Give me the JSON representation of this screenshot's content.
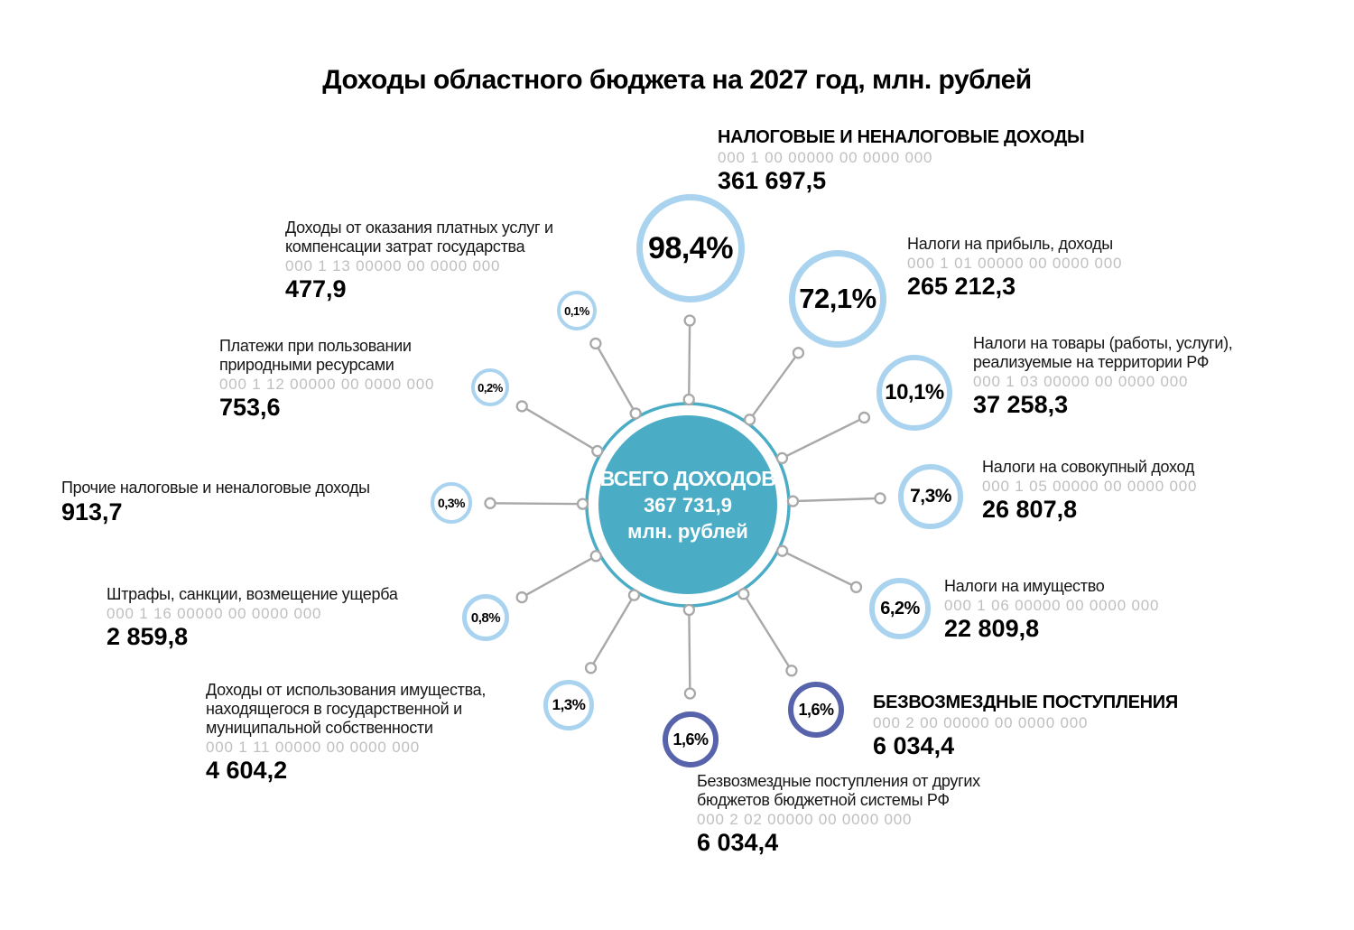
{
  "title": "Доходы областного бюджета на 2027 год, млн. рублей",
  "colors": {
    "teal": "#4bacc6",
    "light_blue": "#a9d3ef",
    "navy": "#5763aa",
    "line_gray": "#a8a8a8",
    "code_gray": "#bfbfbf"
  },
  "center": {
    "title": "ВСЕГО ДОХОДОВ",
    "value": "367 731,9",
    "unit": "млн. рублей"
  },
  "items": [
    {
      "name": "НАЛОГОВЫЕ И НЕНАЛОГОВЫЕ ДОХОДЫ",
      "code": "000 1 00 00000 00 0000 000",
      "value": "361 697,5",
      "percent": "98,4%",
      "emphasis": true,
      "circle_color": "#a9d3ef"
    },
    {
      "name": "Налоги на прибыль, доходы",
      "code": "000 1 01 00000 00 0000 000",
      "value": "265 212,3",
      "percent": "72,1%",
      "circle_color": "#a9d3ef"
    },
    {
      "name": "Налоги на товары (работы, услуги),\nреализуемые на территории РФ",
      "code": "000 1 03 00000 00 0000 000",
      "value": "37 258,3",
      "percent": "10,1%",
      "circle_color": "#a9d3ef"
    },
    {
      "name": "Налоги на совокупный доход",
      "code": "000 1 05 00000 00 0000 000",
      "value": "26 807,8",
      "percent": "7,3%",
      "circle_color": "#a9d3ef"
    },
    {
      "name": "Налоги на имущество",
      "code": "000 1 06 00000 00 0000 000",
      "value": "22 809,8",
      "percent": "6,2%",
      "circle_color": "#a9d3ef"
    },
    {
      "name": "БЕЗВОЗМЕЗДНЫЕ ПОСТУПЛЕНИЯ",
      "code": "000 2 00 00000 00 0000 000",
      "value": "6 034,4",
      "percent": "1,6%",
      "emphasis": true,
      "circle_color": "#5763aa"
    },
    {
      "name": "Безвозмездные поступления от других\nбюджетов бюджетной системы РФ",
      "code": "000 2 02 00000 00 0000 000",
      "value": "6 034,4",
      "percent": "1,6%",
      "circle_color": "#5763aa"
    },
    {
      "name": "Доходы от использования имущества,\nнаходящегося в государственной и\nмуниципальной собственности",
      "code": "000 1 11 00000 00 0000 000",
      "value": "4 604,2",
      "percent": "1,3%",
      "circle_color": "#a9d3ef"
    },
    {
      "name": "Штрафы, санкции, возмещение ущерба",
      "code": "000 1 16 00000 00 0000 000",
      "value": "2 859,8",
      "percent": "0,8%",
      "circle_color": "#a9d3ef"
    },
    {
      "name": "Прочие налоговые и неналоговые доходы",
      "value": "913,7",
      "percent": "0,3%",
      "circle_color": "#a9d3ef"
    },
    {
      "name": "Платежи при пользовании\nприродными ресурсами",
      "code": "000 1 12 00000 00 0000 000",
      "value": "753,6",
      "percent": "0,2%",
      "circle_color": "#a9d3ef"
    },
    {
      "name": "Доходы от оказания платных услуг и\nкомпенсации затрат государства",
      "code": "000 1 13 00000 00 0000 000",
      "value": "477,9",
      "percent": "0,1%",
      "circle_color": "#a9d3ef"
    }
  ],
  "chart_data": {
    "type": "pie",
    "title": "Доходы областного бюджета на 2027 год, млн. рублей",
    "total": {
      "label": "ВСЕГО ДОХОДОВ",
      "value": 367731.9,
      "unit": "млн. рублей"
    },
    "categories": [
      "НАЛОГОВЫЕ И НЕНАЛОГОВЫЕ ДОХОДЫ",
      "Налоги на прибыль, доходы",
      "Налоги на товары (работы, услуги), реализуемые на территории РФ",
      "Налоги на совокупный доход",
      "Налоги на имущество",
      "БЕЗВОЗМЕЗДНЫЕ ПОСТУПЛЕНИЯ",
      "Безвозмездные поступления от других бюджетов бюджетной системы РФ",
      "Доходы от использования имущества, находящегося в государственной и муниципальной собственности",
      "Штрафы, санкции, возмещение ущерба",
      "Прочие налоговые и неналоговые доходы",
      "Платежи при пользовании природными ресурсами",
      "Доходы от оказания платных услуг и компенсации затрат государства"
    ],
    "values": [
      361697.5,
      265212.3,
      37258.3,
      26807.8,
      22809.8,
      6034.4,
      6034.4,
      4604.2,
      2859.8,
      913.7,
      753.6,
      477.9
    ],
    "percents": [
      98.4,
      72.1,
      10.1,
      7.3,
      6.2,
      1.6,
      1.6,
      1.3,
      0.8,
      0.3,
      0.2,
      0.1
    ],
    "codes": [
      "000 1 00 00000 00 0000 000",
      "000 1 01 00000 00 0000 000",
      "000 1 03 00000 00 0000 000",
      "000 1 05 00000 00 0000 000",
      "000 1 06 00000 00 0000 000",
      "000 2 00 00000 00 0000 000",
      "000 2 02 00000 00 0000 000",
      "000 1 11 00000 00 0000 000",
      "000 1 16 00000 00 0000 000",
      "",
      "000 1 12 00000 00 0000 000",
      "000 1 13 00000 00 0000 000"
    ]
  }
}
